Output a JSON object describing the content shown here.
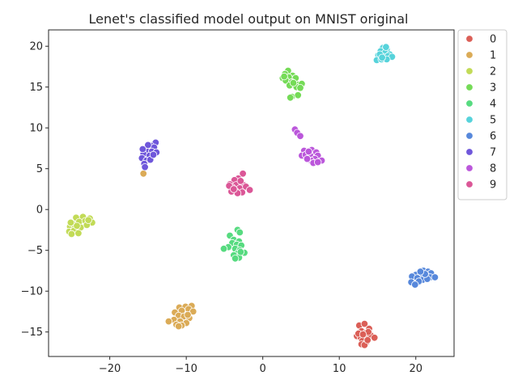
{
  "chart_data": {
    "type": "scatter",
    "title": "Lenet's classified model output on MNIST original",
    "xlabel": "",
    "ylabel": "",
    "xlim": [
      -28,
      25
    ],
    "ylim": [
      -18,
      22
    ],
    "xticks": [
      -20,
      -10,
      0,
      10,
      20
    ],
    "yticks": [
      -15,
      -10,
      -5,
      0,
      5,
      10,
      15,
      20
    ],
    "xtick_labels": [
      "−20",
      "−10",
      "0",
      "10",
      "20"
    ],
    "ytick_labels": [
      "−15",
      "−10",
      "−5",
      "0",
      "5",
      "10",
      "15",
      "20"
    ],
    "grid": false,
    "legend": "outside-right-top",
    "series": [
      {
        "name": "0",
        "color": "#db5f57",
        "points": [
          [
            12.6,
            -14.2
          ],
          [
            13.3,
            -14.0
          ],
          [
            13.9,
            -14.6
          ],
          [
            12.9,
            -14.9
          ],
          [
            13.5,
            -15.1
          ],
          [
            12.3,
            -15.5
          ],
          [
            12.8,
            -15.7
          ],
          [
            13.4,
            -15.6
          ],
          [
            14.1,
            -15.4
          ],
          [
            14.6,
            -15.7
          ],
          [
            13.0,
            -16.1
          ],
          [
            13.6,
            -16.2
          ],
          [
            12.9,
            -16.5
          ],
          [
            13.3,
            -16.6
          ],
          [
            13.8,
            -15.0
          ],
          [
            12.5,
            -15.2
          ],
          [
            13.1,
            -15.3
          ],
          [
            13.7,
            -16.0
          ]
        ]
      },
      {
        "name": "1",
        "color": "#dbab57",
        "points": [
          [
            -15.6,
            4.4
          ],
          [
            -10.9,
            -12.0
          ],
          [
            -10.1,
            -11.9
          ],
          [
            -9.3,
            -11.8
          ],
          [
            -11.5,
            -12.6
          ],
          [
            -10.6,
            -12.4
          ],
          [
            -9.7,
            -12.2
          ],
          [
            -9.1,
            -12.5
          ],
          [
            -11.0,
            -13.0
          ],
          [
            -10.3,
            -13.1
          ],
          [
            -9.6,
            -13.3
          ],
          [
            -11.6,
            -13.5
          ],
          [
            -10.8,
            -13.7
          ],
          [
            -10.0,
            -13.9
          ],
          [
            -12.3,
            -13.7
          ],
          [
            -11.3,
            -14.1
          ],
          [
            -10.6,
            -14.2
          ],
          [
            -11.0,
            -14.3
          ],
          [
            -9.8,
            -12.9
          ]
        ]
      },
      {
        "name": "2",
        "color": "#c2db57",
        "points": [
          [
            -24.4,
            -1.0
          ],
          [
            -23.5,
            -0.9
          ],
          [
            -22.6,
            -1.1
          ],
          [
            -24.9,
            -1.7
          ],
          [
            -24.0,
            -1.5
          ],
          [
            -23.2,
            -1.4
          ],
          [
            -22.3,
            -1.6
          ],
          [
            -25.2,
            -2.1
          ],
          [
            -24.6,
            -2.3
          ],
          [
            -23.8,
            -2.2
          ],
          [
            -23.0,
            -1.9
          ],
          [
            -25.3,
            -2.7
          ],
          [
            -24.7,
            -2.6
          ],
          [
            -24.1,
            -2.9
          ],
          [
            -25.0,
            -3.0
          ],
          [
            -24.3,
            -2.0
          ],
          [
            -25.1,
            -1.6
          ],
          [
            -22.8,
            -1.3
          ]
        ]
      },
      {
        "name": "3",
        "color": "#75db57",
        "points": [
          [
            3.3,
            17.0
          ],
          [
            2.9,
            16.6
          ],
          [
            3.9,
            16.4
          ],
          [
            2.6,
            16.1
          ],
          [
            3.4,
            16.2
          ],
          [
            4.3,
            16.1
          ],
          [
            3.0,
            15.8
          ],
          [
            3.8,
            15.6
          ],
          [
            4.6,
            15.3
          ],
          [
            5.1,
            15.4
          ],
          [
            3.5,
            15.2
          ],
          [
            4.4,
            15.0
          ],
          [
            4.9,
            14.9
          ],
          [
            3.8,
            13.8
          ],
          [
            4.6,
            14.0
          ],
          [
            3.6,
            13.7
          ],
          [
            2.8,
            16.3
          ],
          [
            4.0,
            15.5
          ]
        ]
      },
      {
        "name": "4",
        "color": "#57db80",
        "points": [
          [
            -3.3,
            -2.5
          ],
          [
            -3.0,
            -2.8
          ],
          [
            -4.3,
            -3.2
          ],
          [
            -3.8,
            -3.7
          ],
          [
            -3.1,
            -3.9
          ],
          [
            -4.0,
            -4.1
          ],
          [
            -3.4,
            -4.3
          ],
          [
            -2.8,
            -4.4
          ],
          [
            -4.5,
            -4.6
          ],
          [
            -5.1,
            -4.8
          ],
          [
            -3.6,
            -4.8
          ],
          [
            -3.0,
            -5.0
          ],
          [
            -2.4,
            -5.3
          ],
          [
            -3.3,
            -5.4
          ],
          [
            -3.8,
            -5.6
          ],
          [
            -3.1,
            -5.9
          ],
          [
            -3.6,
            -6.0
          ],
          [
            -2.9,
            -5.2
          ]
        ]
      },
      {
        "name": "5",
        "color": "#57d3db",
        "points": [
          [
            15.7,
            19.8
          ],
          [
            16.2,
            19.6
          ],
          [
            15.4,
            19.4
          ],
          [
            16.0,
            19.2
          ],
          [
            16.6,
            19.0
          ],
          [
            15.1,
            18.9
          ],
          [
            15.8,
            18.7
          ],
          [
            16.4,
            18.8
          ],
          [
            16.9,
            18.7
          ],
          [
            14.9,
            18.3
          ],
          [
            15.5,
            18.4
          ],
          [
            16.2,
            18.4
          ],
          [
            15.3,
            19.0
          ],
          [
            16.1,
            19.9
          ],
          [
            15.6,
            18.6
          ]
        ]
      },
      {
        "name": "6",
        "color": "#5788db",
        "points": [
          [
            21.0,
            -7.5
          ],
          [
            20.5,
            -7.7
          ],
          [
            21.6,
            -7.6
          ],
          [
            22.0,
            -7.8
          ],
          [
            20.0,
            -8.0
          ],
          [
            20.7,
            -8.1
          ],
          [
            21.3,
            -8.0
          ],
          [
            21.9,
            -8.3
          ],
          [
            22.5,
            -8.3
          ],
          [
            19.5,
            -8.2
          ],
          [
            20.2,
            -8.4
          ],
          [
            20.9,
            -8.6
          ],
          [
            21.5,
            -8.5
          ],
          [
            19.4,
            -8.9
          ],
          [
            20.4,
            -8.8
          ],
          [
            19.9,
            -9.2
          ],
          [
            21.2,
            -7.9
          ],
          [
            20.6,
            -7.6
          ]
        ]
      },
      {
        "name": "7",
        "color": "#6f57db",
        "points": [
          [
            -14.0,
            8.2
          ],
          [
            -14.6,
            7.8
          ],
          [
            -15.3,
            7.5
          ],
          [
            -14.2,
            7.6
          ],
          [
            -15.1,
            7.2
          ],
          [
            -14.5,
            7.1
          ],
          [
            -13.9,
            7.0
          ],
          [
            -15.6,
            6.8
          ],
          [
            -14.8,
            6.6
          ],
          [
            -15.8,
            6.3
          ],
          [
            -15.2,
            6.0
          ],
          [
            -14.7,
            6.1
          ],
          [
            -15.5,
            5.6
          ],
          [
            -15.4,
            5.2
          ],
          [
            -15.0,
            7.9
          ],
          [
            -14.3,
            6.7
          ],
          [
            -15.7,
            7.4
          ]
        ]
      },
      {
        "name": "8",
        "color": "#bb57db",
        "points": [
          [
            4.2,
            9.8
          ],
          [
            4.5,
            9.4
          ],
          [
            4.9,
            9.0
          ],
          [
            5.4,
            7.2
          ],
          [
            6.4,
            7.3
          ],
          [
            7.0,
            7.0
          ],
          [
            5.9,
            6.9
          ],
          [
            5.1,
            6.6
          ],
          [
            5.6,
            6.7
          ],
          [
            6.2,
            6.6
          ],
          [
            7.2,
            6.6
          ],
          [
            6.8,
            6.2
          ],
          [
            7.7,
            6.0
          ],
          [
            6.3,
            6.0
          ],
          [
            6.6,
            5.7
          ],
          [
            7.2,
            5.8
          ],
          [
            5.8,
            6.2
          ],
          [
            6.0,
            7.1
          ]
        ]
      },
      {
        "name": "9",
        "color": "#db5797",
        "points": [
          [
            -2.6,
            4.4
          ],
          [
            -3.2,
            3.8
          ],
          [
            -3.7,
            3.6
          ],
          [
            -4.3,
            3.1
          ],
          [
            -2.5,
            3.0
          ],
          [
            -3.5,
            3.0
          ],
          [
            -4.0,
            2.7
          ],
          [
            -3.0,
            2.6
          ],
          [
            -2.2,
            2.8
          ],
          [
            -3.6,
            2.3
          ],
          [
            -4.1,
            2.2
          ],
          [
            -2.7,
            2.1
          ],
          [
            -1.7,
            2.4
          ],
          [
            -3.3,
            2.0
          ],
          [
            -4.4,
            2.9
          ],
          [
            -2.9,
            3.5
          ],
          [
            -3.8,
            2.5
          ]
        ]
      }
    ]
  }
}
